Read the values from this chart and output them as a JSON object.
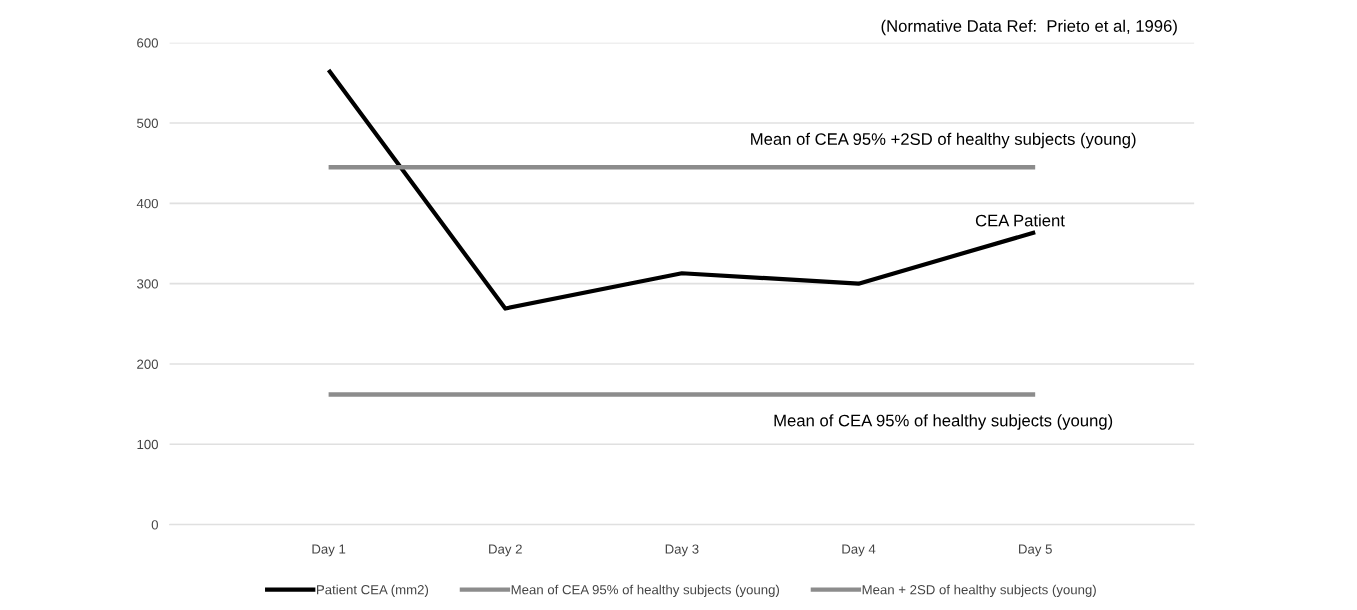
{
  "chart_data": {
    "type": "line",
    "categories": [
      "Day 1",
      "Day 2",
      "Day 3",
      "Day 4",
      "Day 5"
    ],
    "series": [
      {
        "name": "Patient CEA (mm2)",
        "color": "#000000",
        "values": [
          566,
          269,
          313,
          300,
          364
        ]
      },
      {
        "name": "Mean of CEA 95% of healthy subjects (young)",
        "color": "#8c8c8c",
        "values": [
          162,
          162,
          162,
          162,
          162
        ]
      },
      {
        "name": "Mean + 2SD of healthy subjects (young)",
        "color": "#8c8c8c",
        "values": [
          445,
          445,
          445,
          445,
          445
        ]
      }
    ],
    "ylim": [
      0,
      600
    ],
    "yticks": [
      0,
      100,
      200,
      300,
      400,
      500,
      600
    ],
    "grid": "y",
    "legend": "bottom",
    "marker": "none",
    "line_style": "solid",
    "annotations": [
      "Mean of CEA 95% +2SD of healthy subjects (young)",
      "CEA Patient",
      "Mean of CEA 95% of healthy subjects (young)",
      "(Normative Data Ref:  Prieto et al, 1996)"
    ]
  }
}
